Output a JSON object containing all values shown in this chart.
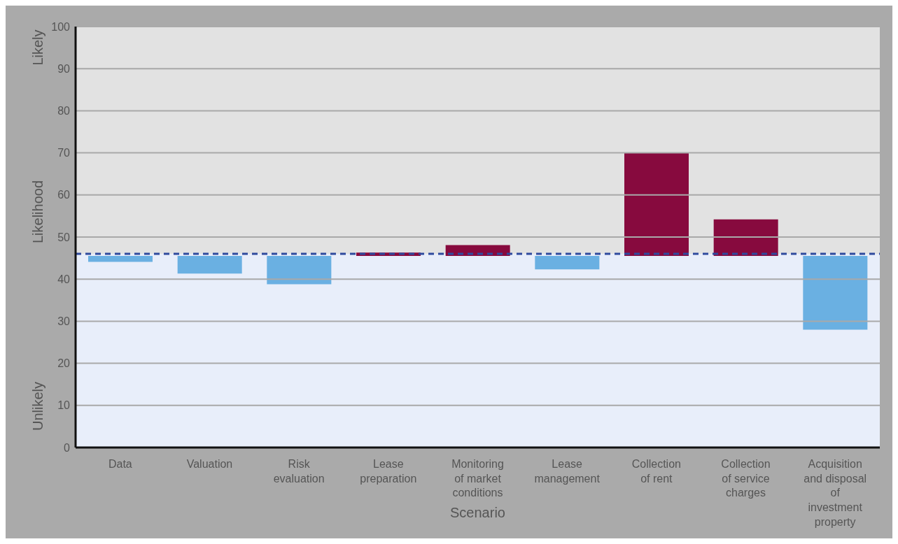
{
  "chart_data": {
    "type": "bar",
    "xlabel": "Scenario",
    "ylabel": "Likelihood",
    "annotations": [
      "Likely",
      "Unlikely"
    ],
    "categories": [
      "Data",
      "Valuation",
      "Risk evaluation",
      "Lease preparation",
      "Monitoring of market conditions",
      "Lease management",
      "Collection of rent",
      "Collection of service charges",
      "Acquisition and disposal of investment property"
    ],
    "base": [
      45.5,
      45.5,
      45.5,
      45.5,
      45.5,
      45.5,
      45.5,
      45.5,
      45.5
    ],
    "values": [
      -1.4,
      -4.2,
      -6.7,
      0.8,
      2.6,
      -3.2,
      24.5,
      8.7,
      -17.5
    ],
    "colors": [
      "#6ab0e2",
      "#6ab0e2",
      "#6ab0e2",
      "#870a3e",
      "#870a3e",
      "#6ab0e2",
      "#870a3e",
      "#870a3e",
      "#6ab0e2"
    ],
    "ylim": [
      0,
      100
    ],
    "yticks": [
      0,
      10,
      20,
      30,
      40,
      50,
      60,
      70,
      80,
      90,
      100
    ],
    "grid": "y",
    "bands": [
      {
        "axis": "y",
        "from": 0,
        "to": 46,
        "color": "#e8eefa"
      },
      {
        "axis": "y",
        "from": 46,
        "to": 100,
        "color": "#e2e2e2"
      }
    ],
    "ref_lines": [
      {
        "axis": "y",
        "value": 46,
        "color": "#2f4a9e",
        "line_style": "dashed"
      }
    ]
  }
}
